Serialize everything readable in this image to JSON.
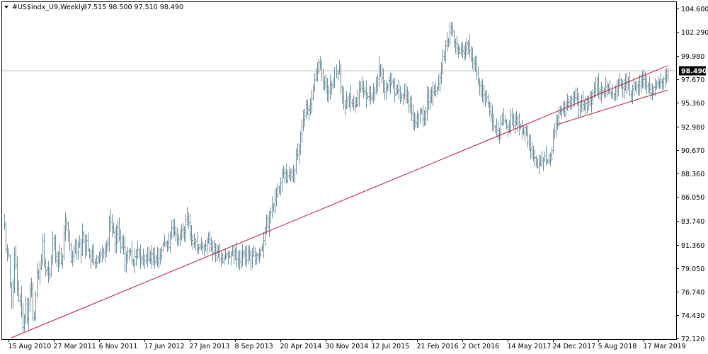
{
  "header": {
    "symbol_label": "#US$indx_U9,Weekly",
    "ohlc": "97.515 98.500 97.510 98.490"
  },
  "colors": {
    "background": "#ffffff",
    "bars": "#6d8f9f",
    "trendline": "#c0143c",
    "price_line": "#c0c0c0",
    "badge_bg": "#000000",
    "badge_text": "#ffffff"
  },
  "icons": {
    "symbol_marker": "triangle-down-icon"
  },
  "chart_data": {
    "type": "ohlc",
    "title": "#US$indx_U9,Weekly",
    "current_price": 98.49,
    "grid": false,
    "ylim": [
      72.07,
      105.25
    ],
    "y_ticks": [
      104.6,
      102.29,
      99.98,
      97.67,
      95.36,
      92.98,
      90.67,
      88.36,
      86.05,
      83.74,
      81.36,
      79.05,
      76.74,
      74.43,
      72.12
    ],
    "y_tick_labels": [
      "104.600",
      "102.290",
      "99.980",
      "97.670",
      "95.360",
      "92.980",
      "90.670",
      "88.360",
      "86.050",
      "83.740",
      "81.360",
      "79.050",
      "76.740",
      "74.430",
      "72.120"
    ],
    "x_tick_labels": [
      "15 Aug 2010",
      "27 Mar 2011",
      "6 Nov 2011",
      "17 Jun 2012",
      "27 Jan 2013",
      "8 Sep 2013",
      "20 Apr 2014",
      "30 Nov 2014",
      "12 Jul 2015",
      "21 Feb 2016",
      "2 Oct 2016",
      "14 May 2017",
      "24 Dec 2017",
      "5 Aug 2018",
      "17 Mar 2019"
    ],
    "x_tick_dates": [
      "2010-08-15",
      "2011-03-27",
      "2011-11-06",
      "2012-06-17",
      "2013-01-27",
      "2013-09-08",
      "2014-04-20",
      "2014-11-30",
      "2015-07-12",
      "2016-02-21",
      "2016-10-02",
      "2017-05-14",
      "2017-12-24",
      "2018-08-05",
      "2019-03-17"
    ],
    "x_range": [
      "2010-07-25",
      "2019-07-14"
    ],
    "series": [
      {
        "closes": [
          [
            83.4,
            80.2
          ],
          [
            80.8,
            77.3
          ],
          [
            75.2,
            80.3
          ],
          [
            79.6,
            75.4
          ],
          [
            77.0,
            74.0
          ],
          [
            73.2,
            76.0
          ],
          [
            74.0,
            76.6
          ],
          [
            77.3,
            73.3
          ],
          [
            75.4,
            78.7
          ],
          [
            78.2,
            79.4
          ],
          [
            81.7,
            79.2
          ],
          [
            79.0,
            78.4
          ],
          [
            78.1,
            82.0
          ],
          [
            81.4,
            80.1
          ],
          [
            79.6,
            80.5
          ],
          [
            79.2,
            82.1
          ],
          [
            84.0,
            82.8
          ],
          [
            81.8,
            79.4
          ],
          [
            80.8,
            81.7
          ],
          [
            80.2,
            82.1
          ],
          [
            80.2,
            83.2
          ],
          [
            80.4,
            82.0
          ],
          [
            80.8,
            79.6
          ],
          [
            80.8,
            79.4
          ],
          [
            79.8,
            80.0
          ],
          [
            80.8,
            80.6
          ],
          [
            80.6,
            80.9
          ],
          [
            81.3,
            84.4
          ],
          [
            83.2,
            82.6
          ],
          [
            81.4,
            83.4
          ],
          [
            82.3,
            81.0
          ],
          [
            81.6,
            79.4
          ],
          [
            80.8,
            80.8
          ],
          [
            80.9,
            79.1
          ],
          [
            80.1,
            80.5
          ],
          [
            80.8,
            79.9
          ],
          [
            80.2,
            79.6
          ],
          [
            80.4,
            80.1
          ],
          [
            79.6,
            80.8
          ],
          [
            80.1,
            79.9
          ],
          [
            79.8,
            80.1
          ],
          [
            80.4,
            81.2
          ],
          [
            81.4,
            82.0
          ],
          [
            81.1,
            82.7
          ],
          [
            83.2,
            82.2
          ],
          [
            82.3,
            81.6
          ],
          [
            82.2,
            83.1
          ],
          [
            82.3,
            84.0
          ],
          [
            84.1,
            82.2
          ],
          [
            82.0,
            81.3
          ],
          [
            82.0,
            81.1
          ],
          [
            80.9,
            81.3
          ],
          [
            81.1,
            81.5
          ],
          [
            81.6,
            81.9
          ],
          [
            80.7,
            80.8
          ],
          [
            81.1,
            80.4
          ],
          [
            81.2,
            79.7
          ],
          [
            80.0,
            79.9
          ],
          [
            80.7,
            80.3
          ],
          [
            80.2,
            80.5
          ],
          [
            80.3,
            80.4
          ],
          [
            80.1,
            79.6
          ],
          [
            80.1,
            80.6
          ],
          [
            80.3,
            80.1
          ],
          [
            80.7,
            79.7
          ],
          [
            80.3,
            80.7
          ],
          [
            80.2,
            80.5
          ],
          [
            80.9,
            81.4
          ],
          [
            81.8,
            84.1
          ],
          [
            83.3,
            84.0
          ],
          [
            85.1,
            85.5
          ],
          [
            86.3,
            86.9
          ],
          [
            87.0,
            88.0
          ],
          [
            88.8,
            88.1
          ],
          [
            87.7,
            88.4
          ],
          [
            88.7,
            88.0
          ],
          [
            88.8,
            90.6
          ],
          [
            90.3,
            92.6
          ],
          [
            93.5,
            94.1
          ],
          [
            95.0,
            94.6
          ],
          [
            95.3,
            96.0
          ],
          [
            97.4,
            98.0
          ],
          [
            98.4,
            99.8
          ],
          [
            98.5,
            97.1
          ],
          [
            97.3,
            96.6
          ],
          [
            96.4,
            97.5
          ],
          [
            97.2,
            98.3
          ],
          [
            98.5,
            98.6
          ],
          [
            96.1,
            95.1
          ],
          [
            94.7,
            96.0
          ],
          [
            96.0,
            95.3
          ],
          [
            95.2,
            94.7
          ],
          [
            95.2,
            96.2
          ],
          [
            97.0,
            96.4
          ],
          [
            96.6,
            95.6
          ],
          [
            95.8,
            95.8
          ],
          [
            96.0,
            96.7
          ],
          [
            96.6,
            98.0
          ],
          [
            98.9,
            98.0
          ],
          [
            96.5,
            96.7
          ],
          [
            97.1,
            97.6
          ],
          [
            97.4,
            97.8
          ],
          [
            96.0,
            96.3
          ],
          [
            96.5,
            95.9
          ],
          [
            95.8,
            96.6
          ],
          [
            96.2,
            95.0
          ],
          [
            95.3,
            94.1
          ],
          [
            93.7,
            93.4
          ],
          [
            94.2,
            94.1
          ],
          [
            94.6,
            93.4
          ],
          [
            93.8,
            96.0
          ],
          [
            95.2,
            96.3
          ],
          [
            96.7,
            96.0
          ],
          [
            96.6,
            97.6
          ],
          [
            98.2,
            99.8
          ],
          [
            99.8,
            101.6
          ],
          [
            101.5,
            102.6
          ],
          [
            102.7,
            101.4
          ],
          [
            101.1,
            100.8
          ],
          [
            100.6,
            100.2
          ],
          [
            100.4,
            100.7
          ],
          [
            101.5,
            100.4
          ],
          [
            100.0,
            99.6
          ],
          [
            99.2,
            98.3
          ],
          [
            97.1,
            96.3
          ],
          [
            96.9,
            95.2
          ],
          [
            95.9,
            95.0
          ],
          [
            94.1,
            93.4
          ],
          [
            93.0,
            92.7
          ],
          [
            92.4,
            92.6
          ],
          [
            93.5,
            93.4
          ],
          [
            93.5,
            92.8
          ],
          [
            93.1,
            94.2
          ],
          [
            93.3,
            93.3
          ],
          [
            94.1,
            92.8
          ],
          [
            93.3,
            92.4
          ],
          [
            92.9,
            91.9
          ],
          [
            91.6,
            90.7
          ],
          [
            90.2,
            90.2
          ],
          [
            89.6,
            89.2
          ],
          [
            89.2,
            89.8
          ],
          [
            90.1,
            89.8
          ],
          [
            89.4,
            89.5
          ],
          [
            90.5,
            92.1
          ],
          [
            93.0,
            94.0
          ],
          [
            94.4,
            94.9
          ],
          [
            94.6,
            94.3
          ],
          [
            95.2,
            95.4
          ],
          [
            95.6,
            95.8
          ],
          [
            96.1,
            96.0
          ],
          [
            94.8,
            95.0
          ],
          [
            95.4,
            94.8
          ],
          [
            95.5,
            96.0
          ],
          [
            95.3,
            96.1
          ],
          [
            96.9,
            96.7
          ],
          [
            97.5,
            96.3
          ],
          [
            96.4,
            96.7
          ],
          [
            96.6,
            96.9
          ],
          [
            97.0,
            96.1
          ],
          [
            96.0,
            96.4
          ],
          [
            96.3,
            97.2
          ],
          [
            97.6,
            96.6
          ],
          [
            96.6,
            97.4
          ],
          [
            97.7,
            96.4
          ],
          [
            96.1,
            96.8
          ],
          [
            96.9,
            97.3
          ],
          [
            96.9,
            97.3
          ],
          [
            97.9,
            97.0
          ],
          [
            96.9,
            96.9
          ],
          [
            96.2,
            96.6
          ],
          [
            96.7,
            97.4
          ],
          [
            97.6,
            97.4
          ],
          [
            97.1,
            97.8
          ],
          [
            97.7,
            98.49
          ]
        ]
      }
    ],
    "trendlines": [
      {
        "from": [
          "2010-08-29",
          72.2
        ],
        "to": [
          "2019-07-14",
          99.0
        ]
      },
      {
        "from": [
          "2018-01-14",
          93.2
        ],
        "to": [
          "2019-07-14",
          96.6
        ]
      }
    ]
  }
}
